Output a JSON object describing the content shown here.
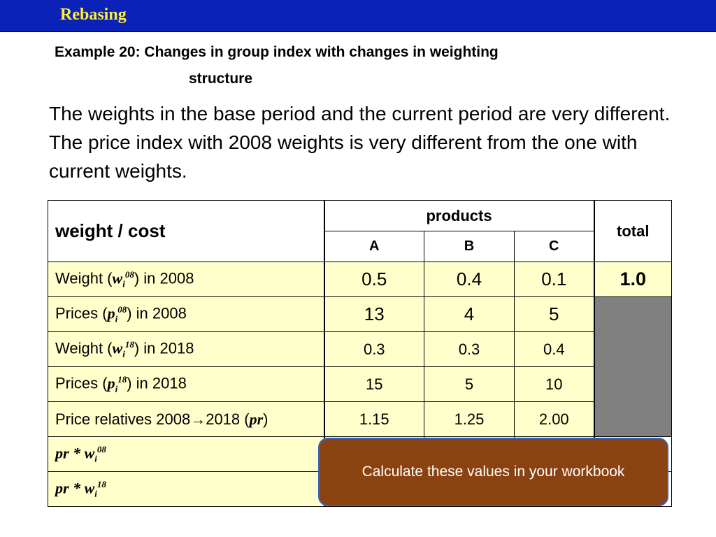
{
  "header": {
    "title": "Rebasing"
  },
  "subtitle": {
    "line1": "Example 20: Changes in group index with changes in weighting",
    "line2": "structure"
  },
  "paragraph": "The weights in the base period and the current period are very different. The price index with 2008 weights is very different from the one with current weights.",
  "table": {
    "header_label": "weight / cost",
    "products_label": "products",
    "total_label": "total",
    "product_names": [
      "A",
      "B",
      "C"
    ],
    "rows": [
      {
        "prefix": "Weight (",
        "sym": "w",
        "sub": "i",
        "sup": "08",
        "suffix": ") in 2008",
        "values": [
          "0.5",
          "0.4",
          "0.1"
        ],
        "total": "1.0"
      },
      {
        "prefix": "Prices (",
        "sym": "p",
        "sub": "i",
        "sup": "08",
        "suffix": ") in 2008",
        "values": [
          "13",
          "4",
          "5"
        ]
      },
      {
        "prefix": "Weight (",
        "sym": "w",
        "sub": "i",
        "sup": "18",
        "suffix": ") in 2018",
        "values": [
          "0.3",
          "0.3",
          "0.4"
        ]
      },
      {
        "prefix": "Prices (",
        "sym": "p",
        "sub": "i",
        "sup": "18",
        "suffix": ") in 2018",
        "values": [
          "15",
          "5",
          "10"
        ]
      },
      {
        "prefix": "Price relatives 2008→2018 (",
        "sym": "pr",
        "suffix": ")",
        "values": [
          "1.15",
          "1.25",
          "2.00"
        ]
      },
      {
        "formula_pr": "pr",
        "formula_mid": " * ",
        "sym": "w",
        "sub": "i",
        "sup": "08"
      },
      {
        "formula_pr": "pr",
        "formula_mid": " * ",
        "sym": "w",
        "sub": "i",
        "sup": "18"
      }
    ]
  },
  "callout": {
    "text": "Calculate these values in your workbook"
  },
  "colors": {
    "topbar": "#0a22b8",
    "title": "#ffee33",
    "cell_fill": "#ffffcc",
    "gray_fill": "#808080",
    "callout_fill": "#8b4211",
    "callout_border": "#3a64b8"
  }
}
